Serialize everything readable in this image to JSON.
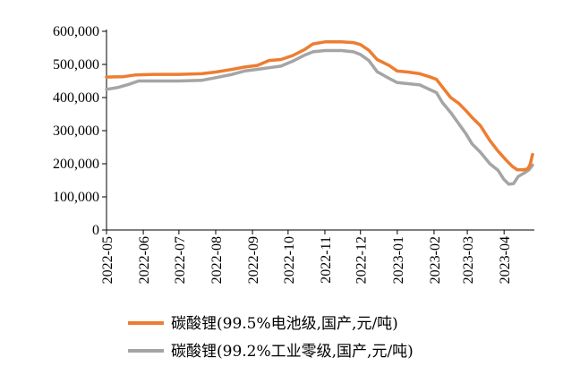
{
  "colors": {
    "series_1": "#ED7D31",
    "series_2": "#A5A5A5"
  },
  "chart_data": {
    "type": "line",
    "title": "",
    "xlabel": "",
    "ylabel": "",
    "ylim": [
      0,
      600000
    ],
    "y_ticks": [
      "0",
      "100,000",
      "200,000",
      "300,000",
      "400,000",
      "500,000",
      "600,000"
    ],
    "y_tick_values": [
      0,
      100000,
      200000,
      300000,
      400000,
      500000,
      600000
    ],
    "x_ticks": [
      "2022-05",
      "2022-06",
      "2022-07",
      "2022-08",
      "2022-09",
      "2022-10",
      "2022-11",
      "2022-12",
      "2023-01",
      "2023-02",
      "2023-03",
      "2023-04"
    ],
    "xlim": [
      "2022-05-01",
      "2023-04-25"
    ],
    "grid": false,
    "legend_position": "bottom",
    "series": [
      {
        "name": "碳酸锂(99.5%电池级,国产,元/吨)",
        "points": [
          [
            "2022-05-01",
            462000
          ],
          [
            "2022-05-15",
            463000
          ],
          [
            "2022-05-25",
            468000
          ],
          [
            "2022-06-10",
            470000
          ],
          [
            "2022-07-01",
            470000
          ],
          [
            "2022-07-20",
            472000
          ],
          [
            "2022-08-01",
            477000
          ],
          [
            "2022-08-15",
            485000
          ],
          [
            "2022-08-25",
            492000
          ],
          [
            "2022-09-05",
            497000
          ],
          [
            "2022-09-15",
            512000
          ],
          [
            "2022-09-25",
            515000
          ],
          [
            "2022-10-05",
            527000
          ],
          [
            "2022-10-15",
            545000
          ],
          [
            "2022-10-22",
            562000
          ],
          [
            "2022-11-01",
            568000
          ],
          [
            "2022-11-15",
            568000
          ],
          [
            "2022-11-25",
            566000
          ],
          [
            "2022-12-01",
            560000
          ],
          [
            "2022-12-08",
            543000
          ],
          [
            "2022-12-15",
            515000
          ],
          [
            "2022-12-25",
            497000
          ],
          [
            "2023-01-01",
            480000
          ],
          [
            "2023-01-10",
            477000
          ],
          [
            "2023-01-20",
            472000
          ],
          [
            "2023-01-28",
            463000
          ],
          [
            "2023-02-03",
            455000
          ],
          [
            "2023-02-08",
            432000
          ],
          [
            "2023-02-15",
            400000
          ],
          [
            "2023-02-22",
            382000
          ],
          [
            "2023-02-28",
            360000
          ],
          [
            "2023-03-05",
            340000
          ],
          [
            "2023-03-12",
            315000
          ],
          [
            "2023-03-20",
            270000
          ],
          [
            "2023-03-27",
            238000
          ],
          [
            "2023-04-03",
            210000
          ],
          [
            "2023-04-08",
            192000
          ],
          [
            "2023-04-12",
            182000
          ],
          [
            "2023-04-18",
            182000
          ],
          [
            "2023-04-21",
            185000
          ],
          [
            "2023-04-23",
            198000
          ],
          [
            "2023-04-25",
            228000
          ]
        ]
      },
      {
        "name": "碳酸锂(99.2%工业零级,国产,元/吨)",
        "points": [
          [
            "2022-05-01",
            425000
          ],
          [
            "2022-05-10",
            430000
          ],
          [
            "2022-05-20",
            440000
          ],
          [
            "2022-05-28",
            450000
          ],
          [
            "2022-06-10",
            450000
          ],
          [
            "2022-07-01",
            450000
          ],
          [
            "2022-07-20",
            452000
          ],
          [
            "2022-08-01",
            460000
          ],
          [
            "2022-08-15",
            470000
          ],
          [
            "2022-08-25",
            480000
          ],
          [
            "2022-09-05",
            485000
          ],
          [
            "2022-09-15",
            490000
          ],
          [
            "2022-09-25",
            495000
          ],
          [
            "2022-10-05",
            510000
          ],
          [
            "2022-10-15",
            528000
          ],
          [
            "2022-10-22",
            538000
          ],
          [
            "2022-11-01",
            542000
          ],
          [
            "2022-11-15",
            542000
          ],
          [
            "2022-11-25",
            538000
          ],
          [
            "2022-12-01",
            530000
          ],
          [
            "2022-12-08",
            512000
          ],
          [
            "2022-12-15",
            478000
          ],
          [
            "2022-12-25",
            458000
          ],
          [
            "2023-01-01",
            445000
          ],
          [
            "2023-01-10",
            442000
          ],
          [
            "2023-01-20",
            438000
          ],
          [
            "2023-01-28",
            425000
          ],
          [
            "2023-02-03",
            415000
          ],
          [
            "2023-02-08",
            385000
          ],
          [
            "2023-02-15",
            355000
          ],
          [
            "2023-02-22",
            320000
          ],
          [
            "2023-02-28",
            290000
          ],
          [
            "2023-03-05",
            260000
          ],
          [
            "2023-03-12",
            235000
          ],
          [
            "2023-03-20",
            200000
          ],
          [
            "2023-03-27",
            180000
          ],
          [
            "2023-04-01",
            152000
          ],
          [
            "2023-04-05",
            138000
          ],
          [
            "2023-04-09",
            140000
          ],
          [
            "2023-04-13",
            162000
          ],
          [
            "2023-04-18",
            172000
          ],
          [
            "2023-04-22",
            182000
          ],
          [
            "2023-04-25",
            196000
          ]
        ]
      }
    ]
  }
}
